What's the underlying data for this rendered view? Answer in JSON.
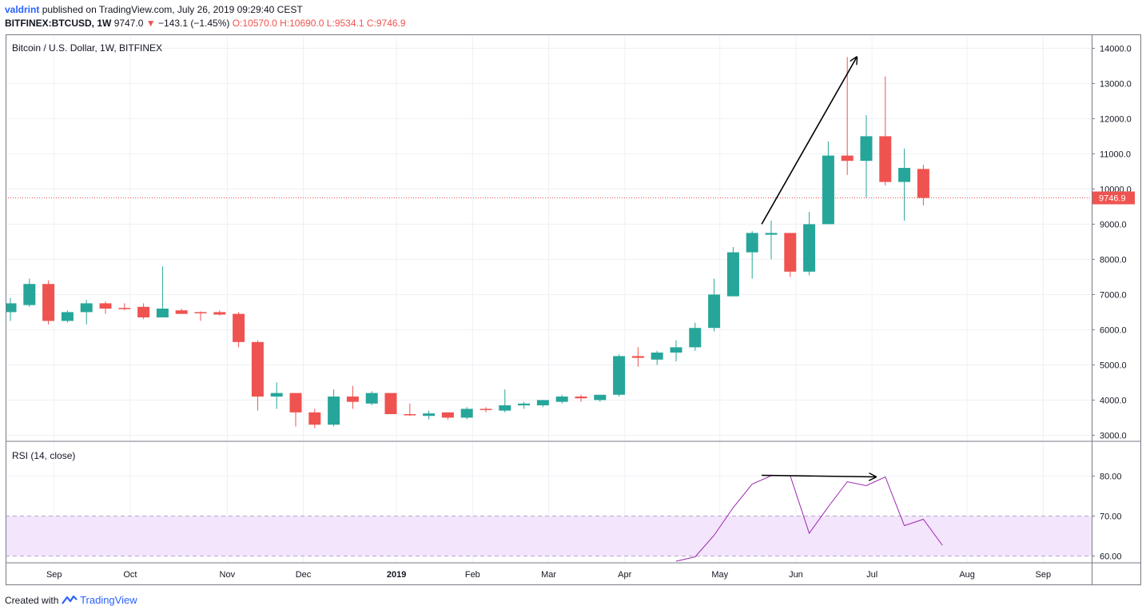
{
  "header": {
    "author": "valdrint",
    "published_text": "published on TradingView.com, July 26, 2019 09:29:40 CEST",
    "symbol": "BITFINEX:BTCUSD, 1W",
    "last": "9747.0",
    "change_arrow": "▼",
    "change": "−143.1 (−1.45%)",
    "ohlc": "O:10570.0 H:10690.0 L:9534.1 C:9746.9"
  },
  "footer": {
    "created_with": "Created with",
    "brand": "TradingView"
  },
  "colors": {
    "up": "#26a69a",
    "down": "#ef5350",
    "rsi_line": "#9c27b0",
    "rsi_band": "#f3e5fc",
    "grid": "#eef0f5",
    "price_line": "#ef5350"
  },
  "chart_data": {
    "type": "candlestick",
    "title": "Bitcoin / U.S. Dollar, 1W, BITFINEX",
    "current_price": 9746.9,
    "current_price_label": "9746.9",
    "ylim": [
      2850,
      14350
    ],
    "y_ticks": [
      3000,
      4000,
      5000,
      6000,
      7000,
      8000,
      9000,
      10000,
      11000,
      12000,
      13000,
      14000
    ],
    "y_tick_labels": [
      "3000.0",
      "4000.0",
      "5000.0",
      "6000.0",
      "7000.0",
      "8000.0",
      "9000.0",
      "10000.0",
      "11000.0",
      "12000.0",
      "13000.0",
      "14000.0"
    ],
    "x_labels": [
      {
        "label": "Sep",
        "week": 2.3
      },
      {
        "label": "Oct",
        "week": 6.3
      },
      {
        "label": "Nov",
        "week": 11.4
      },
      {
        "label": "Dec",
        "week": 15.4
      },
      {
        "label": "2019",
        "week": 20.3,
        "bold": true
      },
      {
        "label": "Feb",
        "week": 24.3
      },
      {
        "label": "Mar",
        "week": 28.3
      },
      {
        "label": "Apr",
        "week": 32.3
      },
      {
        "label": "May",
        "week": 37.3
      },
      {
        "label": "Jun",
        "week": 41.3
      },
      {
        "label": "Jul",
        "week": 45.3
      },
      {
        "label": "Aug",
        "week": 50.3
      },
      {
        "label": "Sep",
        "week": 54.3
      }
    ],
    "candles": [
      {
        "o": 6500,
        "h": 6900,
        "l": 6250,
        "c": 6750
      },
      {
        "o": 6700,
        "h": 7450,
        "l": 6650,
        "c": 7300
      },
      {
        "o": 7300,
        "h": 7400,
        "l": 6150,
        "c": 6250
      },
      {
        "o": 6250,
        "h": 6550,
        "l": 6200,
        "c": 6500
      },
      {
        "o": 6500,
        "h": 6850,
        "l": 6150,
        "c": 6750
      },
      {
        "o": 6750,
        "h": 6800,
        "l": 6450,
        "c": 6600
      },
      {
        "o": 6620,
        "h": 6750,
        "l": 6550,
        "c": 6600
      },
      {
        "o": 6650,
        "h": 6750,
        "l": 6300,
        "c": 6350
      },
      {
        "o": 6350,
        "h": 7800,
        "l": 6350,
        "c": 6600
      },
      {
        "o": 6550,
        "h": 6600,
        "l": 6450,
        "c": 6450
      },
      {
        "o": 6500,
        "h": 6520,
        "l": 6250,
        "c": 6480
      },
      {
        "o": 6500,
        "h": 6550,
        "l": 6400,
        "c": 6430
      },
      {
        "o": 6450,
        "h": 6500,
        "l": 5500,
        "c": 5650
      },
      {
        "o": 5650,
        "h": 5700,
        "l": 3700,
        "c": 4100
      },
      {
        "o": 4100,
        "h": 4500,
        "l": 3750,
        "c": 4200
      },
      {
        "o": 4200,
        "h": 4200,
        "l": 3250,
        "c": 3650
      },
      {
        "o": 3650,
        "h": 3750,
        "l": 3200,
        "c": 3300
      },
      {
        "o": 3300,
        "h": 4300,
        "l": 3250,
        "c": 4100
      },
      {
        "o": 4100,
        "h": 4400,
        "l": 3750,
        "c": 3950
      },
      {
        "o": 3900,
        "h": 4250,
        "l": 3850,
        "c": 4200
      },
      {
        "o": 4200,
        "h": 4200,
        "l": 3600,
        "c": 3600
      },
      {
        "o": 3600,
        "h": 3900,
        "l": 3550,
        "c": 3580
      },
      {
        "o": 3550,
        "h": 3700,
        "l": 3450,
        "c": 3620
      },
      {
        "o": 3650,
        "h": 3650,
        "l": 3450,
        "c": 3500
      },
      {
        "o": 3500,
        "h": 3800,
        "l": 3450,
        "c": 3750
      },
      {
        "o": 3750,
        "h": 3800,
        "l": 3650,
        "c": 3720
      },
      {
        "o": 3700,
        "h": 4300,
        "l": 3650,
        "c": 3850
      },
      {
        "o": 3850,
        "h": 3950,
        "l": 3750,
        "c": 3900
      },
      {
        "o": 3850,
        "h": 4000,
        "l": 3800,
        "c": 4000
      },
      {
        "o": 3950,
        "h": 4150,
        "l": 3900,
        "c": 4100
      },
      {
        "o": 4100,
        "h": 4150,
        "l": 3950,
        "c": 4050
      },
      {
        "o": 4000,
        "h": 4150,
        "l": 3950,
        "c": 4150
      },
      {
        "o": 4150,
        "h": 5300,
        "l": 4100,
        "c": 5250
      },
      {
        "o": 5250,
        "h": 5500,
        "l": 4950,
        "c": 5200
      },
      {
        "o": 5150,
        "h": 5400,
        "l": 5000,
        "c": 5350
      },
      {
        "o": 5350,
        "h": 5700,
        "l": 5100,
        "c": 5500
      },
      {
        "o": 5500,
        "h": 6200,
        "l": 5400,
        "c": 6050
      },
      {
        "o": 6050,
        "h": 7450,
        "l": 5950,
        "c": 7000
      },
      {
        "o": 6950,
        "h": 8350,
        "l": 6950,
        "c": 8200
      },
      {
        "o": 8200,
        "h": 8800,
        "l": 7450,
        "c": 8750
      },
      {
        "o": 8700,
        "h": 9100,
        "l": 8000,
        "c": 8750
      },
      {
        "o": 8750,
        "h": 8750,
        "l": 7500,
        "c": 7650
      },
      {
        "o": 7650,
        "h": 9350,
        "l": 7550,
        "c": 9000
      },
      {
        "o": 9000,
        "h": 11350,
        "l": 9000,
        "c": 10950
      },
      {
        "o": 10950,
        "h": 13750,
        "l": 10400,
        "c": 10800
      },
      {
        "o": 10800,
        "h": 12100,
        "l": 9750,
        "c": 11500
      },
      {
        "o": 11500,
        "h": 13200,
        "l": 10100,
        "c": 10200
      },
      {
        "o": 10200,
        "h": 11150,
        "l": 9100,
        "c": 10600
      },
      {
        "o": 10570,
        "h": 10690,
        "l": 9534.1,
        "c": 9746.9
      }
    ],
    "annotations": [
      {
        "type": "arrow",
        "pane": "price",
        "from": {
          "week": 39.5,
          "value": 9000
        },
        "to": {
          "week": 44.5,
          "value": 13750
        }
      },
      {
        "type": "arrow",
        "pane": "rsi",
        "from": {
          "week": 39.5,
          "value": 80.2
        },
        "to": {
          "week": 45.5,
          "value": 79.8
        }
      }
    ],
    "rsi": {
      "title": "RSI (14, close)",
      "ylim": [
        58.5,
        88.5
      ],
      "y_ticks": [
        60,
        70,
        80
      ],
      "y_tick_labels": [
        "60.00",
        "70.00",
        "80.00"
      ],
      "band": [
        60,
        70
      ],
      "start_week": 35,
      "values": [
        58.7,
        59.8,
        65.2,
        72.1,
        78.0,
        80.1,
        80.1,
        65.7,
        72.3,
        78.6,
        77.6,
        79.8,
        67.6,
        69.2,
        62.7
      ]
    }
  }
}
